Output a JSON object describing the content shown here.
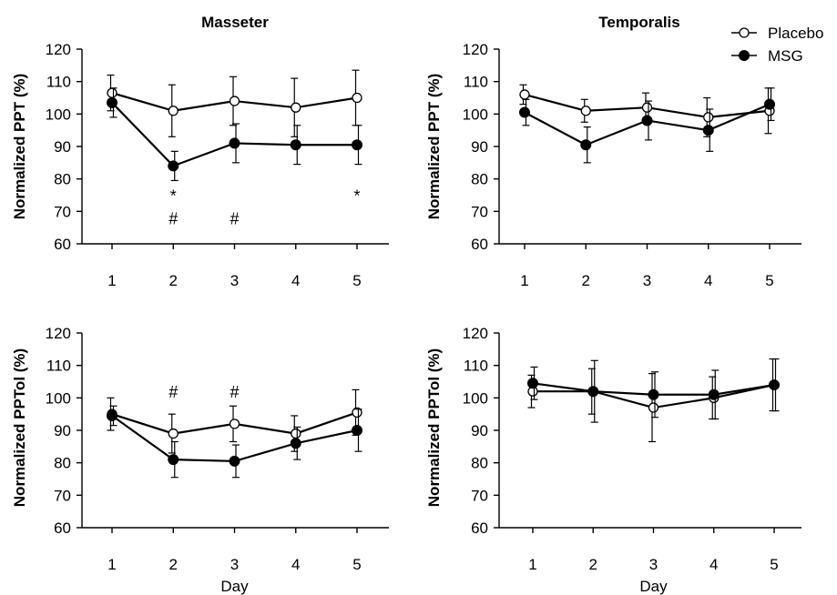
{
  "legend": {
    "position": "top-right",
    "items": [
      {
        "name": "Placebo",
        "marker": "open-circle"
      },
      {
        "name": "MSG",
        "marker": "filled-circle"
      }
    ]
  },
  "chart_data": [
    {
      "type": "line",
      "title": "Masseter",
      "ylabel": "Normalized PPT (%)",
      "xlabel": "",
      "x": [
        1,
        2,
        3,
        4,
        5
      ],
      "ylim": [
        60,
        120
      ],
      "yticks": [
        60,
        70,
        80,
        90,
        100,
        110,
        120
      ],
      "series": [
        {
          "name": "Placebo",
          "marker": "open-circle",
          "values": [
            106.5,
            101,
            104,
            102,
            105
          ],
          "errors": [
            5.5,
            8,
            7.5,
            9,
            8.5
          ]
        },
        {
          "name": "MSG",
          "marker": "filled-circle",
          "values": [
            103.5,
            84,
            91,
            90.5,
            90.5
          ],
          "errors": [
            4.5,
            4.5,
            6,
            6,
            6
          ]
        }
      ],
      "annotations": [
        {
          "x": 2,
          "y": 75,
          "text": "*"
        },
        {
          "x": 2,
          "y": 68,
          "text": "#"
        },
        {
          "x": 3,
          "y": 68,
          "text": "#"
        },
        {
          "x": 5,
          "y": 75,
          "text": "*"
        }
      ]
    },
    {
      "type": "line",
      "title": "Temporalis",
      "ylabel": "Normalized PPT (%)",
      "xlabel": "",
      "x": [
        1,
        2,
        3,
        4,
        5
      ],
      "ylim": [
        60,
        120
      ],
      "yticks": [
        60,
        70,
        80,
        90,
        100,
        110,
        120
      ],
      "series": [
        {
          "name": "Placebo",
          "marker": "open-circle",
          "values": [
            106,
            101,
            102,
            99,
            101
          ],
          "errors": [
            3,
            3.5,
            4.5,
            6,
            7
          ]
        },
        {
          "name": "MSG",
          "marker": "filled-circle",
          "values": [
            100.5,
            90.5,
            98,
            95,
            103
          ],
          "errors": [
            4,
            5.5,
            6,
            6.5,
            5
          ]
        }
      ],
      "annotations": []
    },
    {
      "type": "line",
      "title": "",
      "ylabel": "Normalized PPTol (%)",
      "xlabel": "Day",
      "x": [
        1,
        2,
        3,
        4,
        5
      ],
      "ylim": [
        60,
        120
      ],
      "yticks": [
        60,
        70,
        80,
        90,
        100,
        110,
        120
      ],
      "series": [
        {
          "name": "Placebo",
          "marker": "open-circle",
          "values": [
            95,
            89,
            92,
            89,
            95.5
          ],
          "errors": [
            5,
            6,
            5.5,
            5.5,
            7
          ]
        },
        {
          "name": "MSG",
          "marker": "filled-circle",
          "values": [
            94.5,
            81,
            80.5,
            86,
            90
          ],
          "errors": [
            3,
            5.5,
            5,
            5,
            6.5
          ]
        }
      ],
      "annotations": [
        {
          "x": 2,
          "y": 102,
          "text": "#"
        },
        {
          "x": 3,
          "y": 102,
          "text": "#"
        }
      ]
    },
    {
      "type": "line",
      "title": "",
      "ylabel": "Normalized PPTol (%)",
      "xlabel": "Day",
      "x": [
        1,
        2,
        3,
        4,
        5
      ],
      "ylim": [
        60,
        120
      ],
      "yticks": [
        60,
        70,
        80,
        90,
        100,
        110,
        120
      ],
      "series": [
        {
          "name": "Placebo",
          "marker": "open-circle",
          "values": [
            102,
            102,
            97,
            100,
            104
          ],
          "errors": [
            5,
            7,
            10.5,
            6.5,
            8
          ]
        },
        {
          "name": "MSG",
          "marker": "filled-circle",
          "values": [
            104.5,
            102,
            101,
            101,
            104
          ],
          "errors": [
            5,
            9.5,
            7,
            7.5,
            8
          ]
        }
      ],
      "annotations": []
    }
  ]
}
